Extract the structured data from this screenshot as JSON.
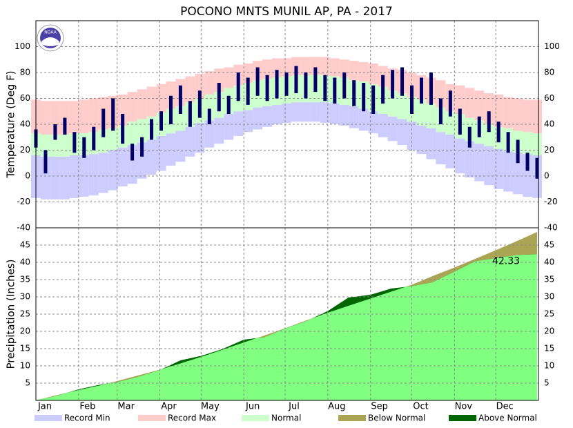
{
  "chart_data": [
    {
      "type": "climate-band",
      "title": "POCONO MNTS MUNIL AP, PA - 2017",
      "y_label": "Temperature (Deg F)",
      "logo_text": "NOAA",
      "x": [
        0,
        7,
        14,
        21,
        28,
        35,
        42,
        49,
        56,
        63,
        70,
        77,
        84,
        91,
        98,
        105,
        112,
        119,
        126,
        133,
        140,
        147,
        154,
        161,
        168,
        175,
        182,
        189,
        196,
        203,
        210,
        217,
        224,
        231,
        238,
        245,
        252,
        259,
        266,
        273,
        280,
        287,
        294,
        301,
        308,
        315,
        322,
        329,
        336,
        343,
        350,
        357,
        364
      ],
      "xlim": [
        0,
        365
      ],
      "ylim": [
        -40,
        120
      ],
      "yticks": [
        -40,
        -20,
        0,
        20,
        40,
        60,
        80,
        100
      ],
      "grid": true,
      "series": [
        {
          "name": "Record Min",
          "color": "#ccccff",
          "values": [
            -17,
            -18,
            -18,
            -18,
            -17,
            -16,
            -15,
            -13,
            -11,
            -8,
            -6,
            -2,
            1,
            4,
            8,
            11,
            15,
            18,
            22,
            25,
            28,
            31,
            34,
            36,
            38,
            40,
            41,
            42,
            42,
            42,
            41,
            40,
            39,
            37,
            35,
            33,
            30,
            27,
            24,
            20,
            17,
            13,
            9,
            6,
            2,
            -1,
            -4,
            -7,
            -10,
            -12,
            -14,
            -16,
            -17
          ]
        },
        {
          "name": "Record Max",
          "color": "#ffcccc",
          "values": [
            59,
            58,
            58,
            58,
            58,
            59,
            60,
            61,
            62,
            63,
            65,
            67,
            69,
            71,
            73,
            75,
            77,
            79,
            81,
            83,
            84,
            86,
            87,
            89,
            90,
            91,
            91,
            92,
            92,
            92,
            92,
            91,
            90,
            89,
            88,
            87,
            85,
            83,
            82,
            80,
            78,
            76,
            74,
            71,
            70,
            68,
            66,
            64,
            63,
            61,
            60,
            59,
            59
          ]
        },
        {
          "name": "Normal",
          "color": "#ccffcc",
          "values": [
            33,
            32,
            32,
            32,
            33,
            33,
            34,
            36,
            37,
            39,
            42,
            44,
            46,
            49,
            52,
            54,
            57,
            60,
            63,
            65,
            68,
            70,
            72,
            74,
            75,
            76,
            77,
            78,
            78,
            78,
            78,
            77,
            76,
            74,
            73,
            71,
            69,
            66,
            64,
            61,
            59,
            56,
            53,
            50,
            48,
            45,
            43,
            40,
            38,
            37,
            35,
            34,
            33
          ],
          "lows": [
            16,
            15,
            15,
            15,
            16,
            16,
            17,
            18,
            20,
            22,
            24,
            26,
            28,
            31,
            33,
            35,
            38,
            41,
            43,
            45,
            48,
            50,
            51,
            53,
            54,
            55,
            56,
            57,
            57,
            57,
            57,
            56,
            55,
            54,
            52,
            50,
            48,
            46,
            44,
            42,
            39,
            37,
            34,
            32,
            29,
            27,
            25,
            23,
            21,
            19,
            18,
            17,
            16
          ]
        },
        {
          "color": "#000066",
          "values": [
            36,
            20,
            40,
            45,
            34,
            30,
            38,
            52,
            60,
            48,
            25,
            30,
            44,
            50,
            62,
            70,
            58,
            66,
            52,
            72,
            62,
            80,
            76,
            84,
            78,
            82,
            80,
            85,
            80,
            84,
            78,
            76,
            80,
            74,
            72,
            70,
            78,
            82,
            84,
            70,
            76,
            80,
            60,
            66,
            52,
            38,
            46,
            50,
            42,
            34,
            28,
            18,
            14
          ],
          "lows": [
            22,
            2,
            28,
            32,
            18,
            14,
            20,
            30,
            35,
            25,
            12,
            15,
            28,
            35,
            40,
            48,
            38,
            45,
            40,
            50,
            48,
            58,
            55,
            62,
            58,
            60,
            62,
            64,
            60,
            65,
            58,
            56,
            60,
            54,
            50,
            48,
            56,
            60,
            62,
            48,
            56,
            55,
            40,
            46,
            32,
            22,
            30,
            34,
            26,
            18,
            10,
            4,
            -2
          ]
        }
      ]
    },
    {
      "type": "cumulative-area",
      "y_label": "Precipitation (Inches)",
      "x": [
        0,
        15,
        31,
        46,
        59,
        74,
        90,
        105,
        120,
        135,
        151,
        166,
        181,
        196,
        212,
        227,
        243,
        258,
        273,
        288,
        304,
        319,
        334,
        349,
        364
      ],
      "xlim": [
        0,
        365
      ],
      "ylim": [
        0,
        50
      ],
      "yticks": [
        5,
        10,
        15,
        20,
        25,
        30,
        35,
        40,
        45
      ],
      "grid": true,
      "xticks": [
        {
          "value": 0,
          "label": "Jan"
        },
        {
          "value": 31,
          "label": "Feb"
        },
        {
          "value": 59,
          "label": "Mar"
        },
        {
          "value": 90,
          "label": "Apr"
        },
        {
          "value": 120,
          "label": "May"
        },
        {
          "value": 151,
          "label": "Jun"
        },
        {
          "value": 181,
          "label": "Jul"
        },
        {
          "value": 212,
          "label": "Aug"
        },
        {
          "value": 243,
          "label": "Sep"
        },
        {
          "value": 273,
          "label": "Oct"
        },
        {
          "value": 304,
          "label": "Nov"
        },
        {
          "value": 334,
          "label": "Dec"
        }
      ],
      "normal": {
        "values": [
          0,
          1.5,
          3.0,
          4.3,
          5.6,
          7.2,
          8.9,
          10.7,
          12.6,
          14.6,
          16.8,
          18.8,
          20.9,
          23.1,
          25.4,
          27.4,
          29.5,
          31.5,
          33.5,
          36.0,
          38.5,
          41.0,
          43.5,
          46.1,
          48.8
        ]
      },
      "observed": {
        "color": "#80ff80",
        "values": [
          0,
          1.3,
          3.2,
          4.5,
          5.3,
          6.8,
          8.8,
          11.6,
          12.9,
          14.8,
          17.6,
          18.3,
          20.8,
          22.9,
          25.9,
          29.8,
          30.6,
          32.4,
          33.1,
          34.2,
          37.3,
          40.3,
          41.2,
          42.1,
          42.33
        ]
      },
      "annotation": "42.33",
      "legend": [
        {
          "name": "Below Normal",
          "color": "#aaa455"
        },
        {
          "name": "Above Normal",
          "color": "#006600"
        }
      ]
    }
  ]
}
